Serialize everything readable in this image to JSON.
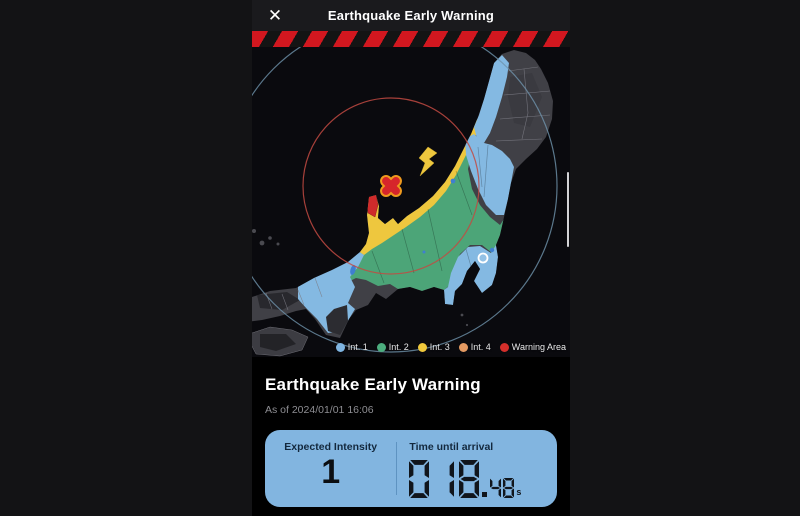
{
  "header": {
    "title": "Earthquake Early Warning",
    "close_glyph": "✕"
  },
  "map": {
    "legend": [
      {
        "label": "Int. 1",
        "color": "#7fb5e2"
      },
      {
        "label": "Int. 2",
        "color": "#4cae7e"
      },
      {
        "label": "Int. 3",
        "color": "#f0c93c"
      },
      {
        "label": "Int. 4",
        "color": "#e49a62"
      },
      {
        "label": "Warning Area",
        "color": "#d42f2b"
      }
    ],
    "intensity_colors": {
      "int1_blue": "#84b9e2",
      "int2_green": "#4ca578",
      "int3_yellow": "#eec73e",
      "warning_red": "#cf2b2b"
    }
  },
  "info": {
    "title": "Earthquake Early Warning",
    "as_of": "As of 2024/01/01 16:06",
    "intensity": {
      "label": "Expected Intensity",
      "value": "1"
    },
    "arrival": {
      "label": "Time until arrival",
      "digits": "018",
      "fraction": "48",
      "unit": "s"
    }
  },
  "colors": {
    "hazard_red": "#d2171f",
    "panel_blue": "#82b5e0"
  }
}
